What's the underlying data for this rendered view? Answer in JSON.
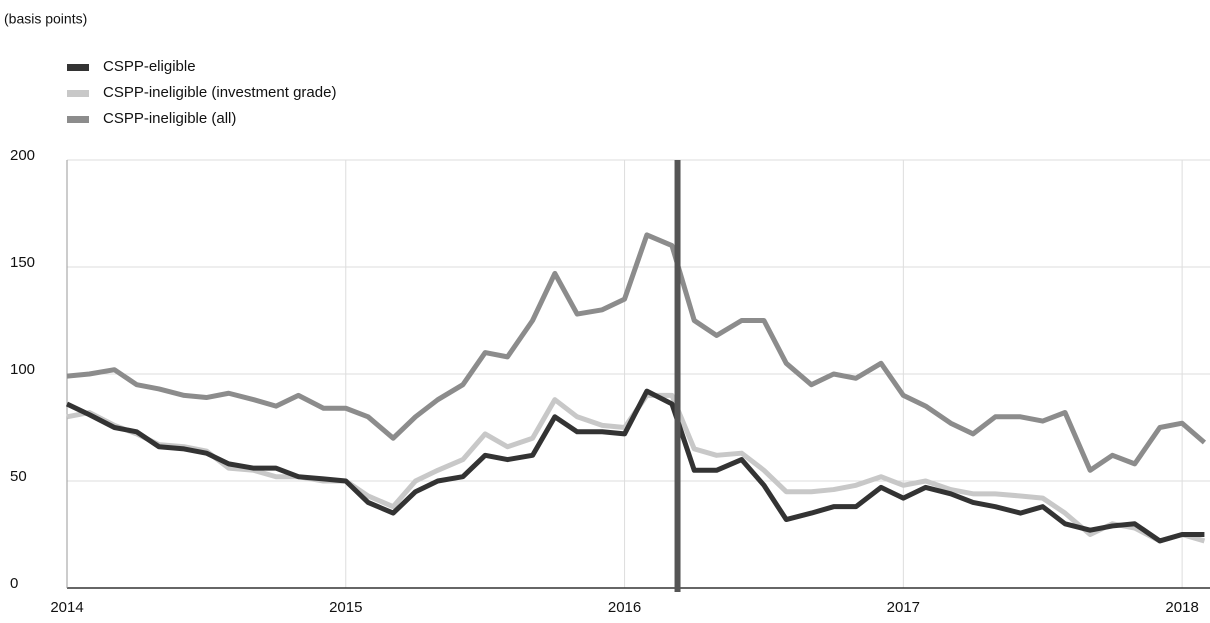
{
  "chart_data": {
    "type": "line",
    "subtitle": "(basis points)",
    "x": [
      2014,
      2014.08,
      2014.17,
      2014.25,
      2014.33,
      2014.42,
      2014.5,
      2014.58,
      2014.67,
      2014.75,
      2014.83,
      2014.92,
      2015,
      2015.08,
      2015.17,
      2015.25,
      2015.33,
      2015.42,
      2015.5,
      2015.58,
      2015.67,
      2015.75,
      2015.83,
      2015.92,
      2016,
      2016.08,
      2016.17,
      2016.25,
      2016.33,
      2016.42,
      2016.5,
      2016.58,
      2016.67,
      2016.75,
      2016.83,
      2016.92,
      2017,
      2017.08,
      2017.17,
      2017.25,
      2017.33,
      2017.42,
      2017.5,
      2017.58,
      2017.67,
      2017.75,
      2017.83,
      2017.92,
      2018,
      2018.08
    ],
    "series": [
      {
        "name": "CSPP-eligible",
        "color": "#333333",
        "values": [
          86,
          81,
          75,
          73,
          66,
          65,
          63,
          58,
          56,
          56,
          52,
          51,
          50,
          40,
          35,
          45,
          50,
          52,
          62,
          60,
          62,
          80,
          73,
          73,
          72,
          92,
          86,
          55,
          55,
          60,
          48,
          32,
          35,
          38,
          38,
          47,
          42,
          47,
          44,
          40,
          38,
          35,
          38,
          30,
          27,
          29,
          30,
          22,
          25,
          25
        ]
      },
      {
        "name": "CSPP-ineligible (investment grade)",
        "color": "#c8c8c8",
        "values": [
          80,
          82,
          76,
          72,
          67,
          66,
          64,
          56,
          55,
          52,
          52,
          50,
          50,
          43,
          38,
          50,
          55,
          60,
          72,
          66,
          70,
          88,
          80,
          76,
          75,
          90,
          90,
          65,
          62,
          63,
          55,
          45,
          45,
          46,
          48,
          52,
          48,
          50,
          46,
          44,
          44,
          43,
          42,
          35,
          25,
          30,
          28,
          22,
          25,
          22
        ]
      },
      {
        "name": "CSPP-ineligible (all)",
        "color": "#8c8c8c",
        "values": [
          99,
          100,
          102,
          95,
          93,
          90,
          89,
          91,
          88,
          85,
          90,
          84,
          84,
          80,
          70,
          80,
          88,
          95,
          110,
          108,
          125,
          147,
          128,
          130,
          135,
          165,
          160,
          125,
          118,
          125,
          125,
          105,
          95,
          100,
          98,
          105,
          90,
          85,
          77,
          72,
          80,
          80,
          78,
          82,
          55,
          62,
          58,
          75,
          77,
          68
        ]
      }
    ],
    "event_line": 2016.19,
    "xlim": [
      2014,
      2018.1
    ],
    "xticks": [
      2014,
      2015,
      2016,
      2017,
      2018
    ],
    "ylim": [
      0,
      200
    ],
    "yticks": [
      0,
      50,
      100,
      150,
      200
    ],
    "grid": true
  }
}
